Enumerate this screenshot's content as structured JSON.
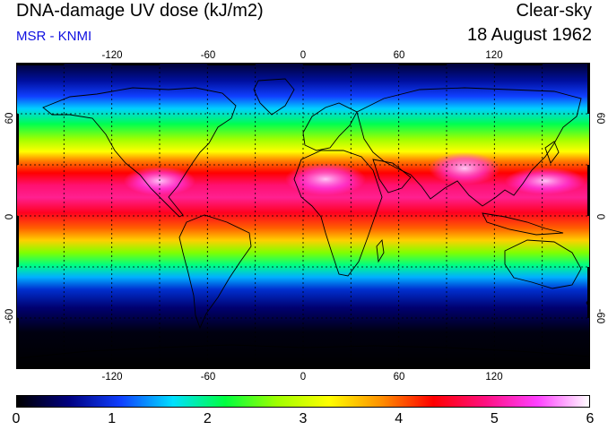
{
  "header": {
    "title": "DNA-damage UV dose (kJ/m2)",
    "source": "MSR - KNMI",
    "condition": "Clear-sky",
    "date": "18 August 1962"
  },
  "map": {
    "lon_ticks": [
      "-120",
      "-60",
      "0",
      "60",
      "120"
    ],
    "lat_ticks": [
      "60",
      "0",
      "-60"
    ],
    "lon_range": [
      -180,
      180
    ],
    "lat_range": [
      -90,
      90
    ]
  },
  "colorbar": {
    "labels": [
      "0",
      "1",
      "2",
      "3",
      "4",
      "5",
      "6"
    ],
    "range": [
      0,
      6
    ],
    "colors": [
      "#000000",
      "#000080",
      "#1040ff",
      "#00e0ff",
      "#00ff40",
      "#a0ff00",
      "#ffff00",
      "#ff9000",
      "#ff0000",
      "#ff1080",
      "#ff40ff",
      "#ffffff"
    ]
  }
}
